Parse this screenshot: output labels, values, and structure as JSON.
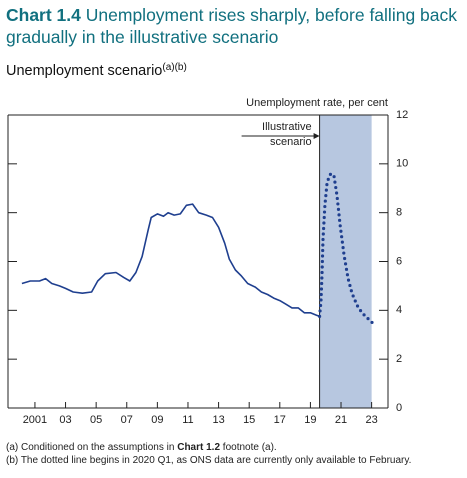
{
  "chart_data": {
    "type": "line",
    "title_label": "Chart 1.4",
    "title": "Unemployment rises sharply, before falling back gradually in the illustrative scenario",
    "subtitle": "Unemployment scenario",
    "subtitle_notes": "(a)(b)",
    "y_axis_label": "Unemployment rate, per cent",
    "annotation": [
      "Illustrative",
      "scenario"
    ],
    "footnotes": [
      [
        "(a) Conditioned on the assumptions in ",
        "Chart 1.2",
        " footnote (a)."
      ],
      [
        "(b) The dotted line begins in 2020 Q1, as ONS data are currently only available to February."
      ]
    ],
    "shade": [
      2020.1,
      2023.5
    ],
    "shade_color": "#b7c7e0",
    "xlim": [
      1999.74,
      2024.57
    ],
    "ylim": [
      0,
      12
    ],
    "yticks": [
      0,
      2,
      4,
      6,
      8,
      10,
      12
    ],
    "xticks": [
      {
        "value": 2001.5,
        "label": "2001"
      },
      {
        "value": 2003.5,
        "label": "03"
      },
      {
        "value": 2005.5,
        "label": "05"
      },
      {
        "value": 2007.5,
        "label": "07"
      },
      {
        "value": 2009.5,
        "label": "09"
      },
      {
        "value": 2011.5,
        "label": "11"
      },
      {
        "value": 2013.5,
        "label": "13"
      },
      {
        "value": 2015.5,
        "label": "15"
      },
      {
        "value": 2017.5,
        "label": "17"
      },
      {
        "value": 2019.5,
        "label": "19"
      },
      {
        "value": 2021.5,
        "label": "21"
      },
      {
        "value": 2023.5,
        "label": "23"
      }
    ],
    "series": [
      {
        "style": "solid",
        "color": "#1f3f8f",
        "x": [
          2000.65,
          2001.2,
          2001.8,
          2002.2,
          2002.6,
          2003.1,
          2003.5,
          2004.0,
          2004.6,
          2005.2,
          2005.6,
          2006.1,
          2006.8,
          2007.3,
          2007.7,
          2008.1,
          2008.5,
          2008.9,
          2009.1,
          2009.5,
          2009.9,
          2010.2,
          2010.6,
          2011.0,
          2011.4,
          2011.8,
          2012.2,
          2012.7,
          2013.1,
          2013.5,
          2013.9,
          2014.2,
          2014.6,
          2015.0,
          2015.4,
          2015.9,
          2016.3,
          2016.7,
          2017.1,
          2017.5,
          2017.9,
          2018.3,
          2018.7,
          2019.1,
          2019.5,
          2019.9,
          2020.1
        ],
        "values": [
          5.1,
          5.2,
          5.2,
          5.3,
          5.1,
          5.0,
          4.9,
          4.75,
          4.7,
          4.75,
          5.2,
          5.5,
          5.55,
          5.35,
          5.2,
          5.55,
          6.2,
          7.3,
          7.8,
          7.95,
          7.85,
          8.0,
          7.9,
          7.95,
          8.3,
          8.35,
          8.0,
          7.9,
          7.8,
          7.4,
          6.75,
          6.1,
          5.65,
          5.4,
          5.1,
          4.95,
          4.75,
          4.65,
          4.5,
          4.4,
          4.25,
          4.1,
          4.1,
          3.9,
          3.9,
          3.8,
          3.75
        ]
      },
      {
        "style": "dotted",
        "color": "#1f3f8f",
        "x": [
          2020.1,
          2020.19,
          2020.26,
          2020.32,
          2020.45,
          2020.58,
          2020.72,
          2020.85,
          2021.04,
          2021.24,
          2021.44,
          2021.7,
          2021.96,
          2022.22,
          2022.55,
          2022.87,
          2023.2,
          2023.53
        ],
        "values": [
          3.75,
          4.4,
          5.45,
          6.9,
          8.3,
          9.15,
          9.5,
          9.6,
          9.5,
          8.7,
          7.5,
          6.25,
          5.3,
          4.7,
          4.2,
          3.9,
          3.7,
          3.5
        ]
      }
    ]
  }
}
